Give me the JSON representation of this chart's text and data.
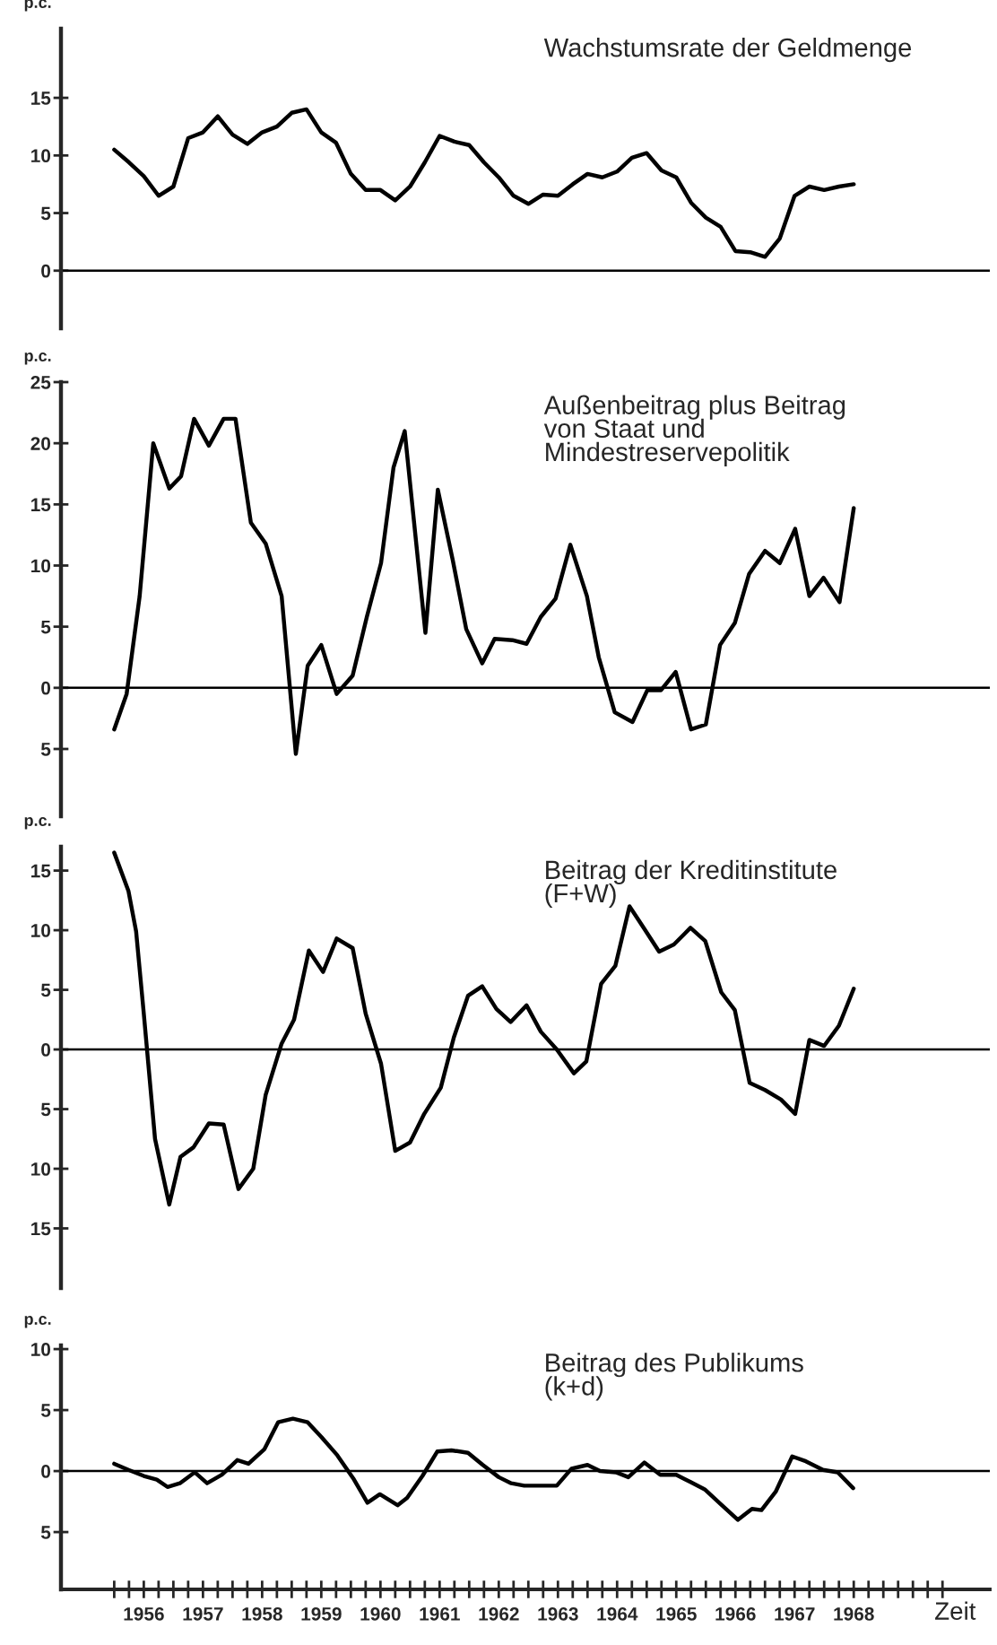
{
  "chart_data": [
    {
      "type": "line",
      "title": "Wachstumsrate der Geldmenge",
      "ylabel": "p.c.",
      "tick_labels": "y",
      "xlim": [
        1955.1,
        1970.8
      ],
      "ylim": [
        -5,
        21
      ],
      "yticks": [
        0,
        5,
        10,
        15
      ],
      "ref_lines": [
        {
          "axis": "y",
          "value": 0
        }
      ],
      "series": [
        {
          "color": "#000000",
          "x": [
            1956,
            1956.25,
            1956.5,
            1956.75,
            1957,
            1957.25,
            1957.5,
            1957.75,
            1958,
            1958.25,
            1958.5,
            1958.75,
            1959,
            1959.25,
            1959.5,
            1959.75,
            1960,
            1960.25,
            1960.5,
            1960.75,
            1961,
            1961.25,
            1961.5,
            1961.75,
            1962,
            1962.25,
            1962.5,
            1962.75,
            1963,
            1963.25,
            1963.5,
            1963.75,
            1964,
            1964.25,
            1964.5,
            1964.75,
            1965,
            1965.25,
            1965.5,
            1965.75,
            1966,
            1966.25,
            1966.5,
            1966.75,
            1967,
            1967.25,
            1967.5,
            1967.75,
            1968,
            1968.25,
            1968.5
          ],
          "values": [
            10.5,
            9.4,
            8.2,
            6.5,
            7.3,
            11.5,
            12,
            13.4,
            11.8,
            11,
            12,
            12.5,
            13.7,
            14,
            12,
            11.1,
            8.4,
            7,
            7,
            6.1,
            7.3,
            9.4,
            11.7,
            11.2,
            10.9,
            9.4,
            8.1,
            6.5,
            5.8,
            6.6,
            6.5,
            7.5,
            8.4,
            8.1,
            8.6,
            9.8,
            10.2,
            8.7,
            8.1,
            5.9,
            4.6,
            3.8,
            1.7,
            1.6,
            1.2,
            2.8,
            6.5,
            7.3,
            7,
            7.3,
            7.5
          ]
        }
      ]
    },
    {
      "type": "line",
      "title": "Außenbeitrag plus Beitrag\nvon Staat und\nMindestreservepolitik",
      "ylabel": "p.c.",
      "tick_labels": "y",
      "xlim": [
        1955.1,
        1970.8
      ],
      "ylim": [
        -10.5,
        25
      ],
      "yticks": [
        {
          "value": -5,
          "label": "5"
        },
        0,
        5,
        10,
        15,
        20,
        25
      ],
      "ref_lines": [
        {
          "axis": "y",
          "value": 0
        }
      ],
      "series": [
        {
          "color": "#000000",
          "x": [
            1956.0,
            1956.21,
            1956.43,
            1956.66,
            1956.93,
            1957.13,
            1957.35,
            1957.6,
            1957.85,
            1958.05,
            1958.31,
            1958.56,
            1958.83,
            1959.07,
            1959.27,
            1959.5,
            1959.76,
            1960.03,
            1960.27,
            1960.51,
            1960.72,
            1960.91,
            1961.26,
            1961.47,
            1961.72,
            1961.95,
            1962.22,
            1962.43,
            1962.73,
            1962.97,
            1963.21,
            1963.46,
            1963.71,
            1963.99,
            1964.19,
            1964.46,
            1964.76,
            1965.01,
            1965.24,
            1965.49,
            1965.75,
            1966.0,
            1966.24,
            1966.49,
            1966.73,
            1967.0,
            1967.25,
            1967.51,
            1967.75,
            1967.99,
            1968.26,
            1968.5
          ],
          "values": [
            -3.4,
            -0.5,
            7.5,
            20,
            16.3,
            17.3,
            22,
            19.8,
            22,
            22,
            13.5,
            11.8,
            7.5,
            -5.4,
            1.8,
            3.5,
            -0.5,
            1,
            5.8,
            10.2,
            18,
            21,
            4.5,
            16.2,
            10.5,
            4.8,
            2,
            4,
            3.9,
            3.6,
            5.8,
            7.3,
            11.7,
            7.5,
            2.5,
            -2,
            -2.8,
            -0.2,
            -0.2,
            1.3,
            -3.4,
            -3,
            3.5,
            5.3,
            9.3,
            11.2,
            10.2,
            13,
            7.5,
            9,
            7,
            14.7
          ]
        }
      ]
    },
    {
      "type": "line",
      "title": "Beitrag der Kreditinstitute\n(F+W)",
      "ylabel": "p.c.",
      "tick_labels": "y",
      "xlim": [
        1955.1,
        1970.8
      ],
      "ylim": [
        -20,
        17
      ],
      "yticks": [
        {
          "value": -15,
          "label": "15"
        },
        {
          "value": -10,
          "label": "10"
        },
        {
          "value": -5,
          "label": "5"
        },
        0,
        5,
        10,
        15
      ],
      "ref_lines": [
        {
          "axis": "y",
          "value": 0
        }
      ],
      "series": [
        {
          "color": "#000000",
          "x": [
            1956.0,
            1956.24,
            1956.37,
            1956.5,
            1956.69,
            1956.93,
            1957.12,
            1957.34,
            1957.6,
            1957.85,
            1958.1,
            1958.35,
            1958.56,
            1958.83,
            1959.04,
            1959.29,
            1959.53,
            1959.76,
            1960.03,
            1960.25,
            1960.51,
            1960.75,
            1961.0,
            1961.24,
            1961.52,
            1961.74,
            1961.98,
            1962.22,
            1962.46,
            1962.7,
            1962.97,
            1963.21,
            1963.48,
            1963.77,
            1963.98,
            1964.23,
            1964.47,
            1964.71,
            1964.95,
            1965.21,
            1965.46,
            1965.74,
            1965.99,
            1966.26,
            1966.49,
            1966.74,
            1967.0,
            1967.27,
            1967.51,
            1967.75,
            1968.0,
            1968.25,
            1968.5
          ],
          "values": [
            16.5,
            13.3,
            9.9,
            3,
            -7.5,
            -13,
            -9,
            -8.2,
            -6.2,
            -6.3,
            -11.7,
            -10,
            -3.8,
            0.5,
            2.5,
            8.3,
            6.5,
            9.3,
            8.5,
            3,
            -1.2,
            -8.5,
            -7.8,
            -5.4,
            -3.2,
            1,
            4.5,
            5.3,
            3.4,
            2.3,
            3.7,
            1.5,
            0,
            -2,
            -1,
            5.5,
            7,
            12,
            10.2,
            8.2,
            8.8,
            10.2,
            9.1,
            4.8,
            3.3,
            -2.8,
            -3.4,
            -4.2,
            -5.4,
            0.8,
            0.3,
            2,
            5.1
          ]
        }
      ]
    },
    {
      "type": "line",
      "title": "Beitrag des Publikums\n(k+d)",
      "ylabel": "p.c.",
      "xlabel": "Zeit",
      "xlim": [
        1955.1,
        1970.8
      ],
      "ylim": [
        -9.7,
        10.3
      ],
      "yticks": [
        {
          "value": -5,
          "label": "5"
        },
        0,
        5,
        10
      ],
      "ref_lines": [
        {
          "axis": "y",
          "value": 0
        }
      ],
      "xticks": [
        {
          "value": 1956,
          "label": null
        },
        {
          "value": 1956.25,
          "label": null
        },
        {
          "value": 1956.5,
          "label": "1956"
        },
        {
          "value": 1956.75,
          "label": null
        },
        {
          "value": 1957,
          "label": null
        },
        {
          "value": 1957.25,
          "label": null
        },
        {
          "value": 1957.5,
          "label": "1957"
        },
        {
          "value": 1957.75,
          "label": null
        },
        {
          "value": 1958,
          "label": null
        },
        {
          "value": 1958.25,
          "label": null
        },
        {
          "value": 1958.5,
          "label": "1958"
        },
        {
          "value": 1958.75,
          "label": null
        },
        {
          "value": 1959,
          "label": null
        },
        {
          "value": 1959.25,
          "label": null
        },
        {
          "value": 1959.5,
          "label": "1959"
        },
        {
          "value": 1959.75,
          "label": null
        },
        {
          "value": 1960,
          "label": null
        },
        {
          "value": 1960.25,
          "label": null
        },
        {
          "value": 1960.5,
          "label": "1960"
        },
        {
          "value": 1960.75,
          "label": null
        },
        {
          "value": 1961,
          "label": null
        },
        {
          "value": 1961.25,
          "label": null
        },
        {
          "value": 1961.5,
          "label": "1961"
        },
        {
          "value": 1961.75,
          "label": null
        },
        {
          "value": 1962,
          "label": null
        },
        {
          "value": 1962.25,
          "label": null
        },
        {
          "value": 1962.5,
          "label": "1962"
        },
        {
          "value": 1962.75,
          "label": null
        },
        {
          "value": 1963,
          "label": null
        },
        {
          "value": 1963.25,
          "label": null
        },
        {
          "value": 1963.5,
          "label": "1963"
        },
        {
          "value": 1963.75,
          "label": null
        },
        {
          "value": 1964,
          "label": null
        },
        {
          "value": 1964.25,
          "label": null
        },
        {
          "value": 1964.5,
          "label": "1964"
        },
        {
          "value": 1964.75,
          "label": null
        },
        {
          "value": 1965,
          "label": null
        },
        {
          "value": 1965.25,
          "label": null
        },
        {
          "value": 1965.5,
          "label": "1965"
        },
        {
          "value": 1965.75,
          "label": null
        },
        {
          "value": 1966,
          "label": null
        },
        {
          "value": 1966.25,
          "label": null
        },
        {
          "value": 1966.5,
          "label": "1966"
        },
        {
          "value": 1966.75,
          "label": null
        },
        {
          "value": 1967,
          "label": null
        },
        {
          "value": 1967.25,
          "label": null
        },
        {
          "value": 1967.5,
          "label": "1967"
        },
        {
          "value": 1967.75,
          "label": null
        },
        {
          "value": 1968,
          "label": null
        },
        {
          "value": 1968.25,
          "label": null
        },
        {
          "value": 1968.5,
          "label": "1968"
        },
        {
          "value": 1968.75,
          "label": null
        },
        {
          "value": 1969,
          "label": null
        },
        {
          "value": 1969.25,
          "label": null
        },
        {
          "value": 1969.5,
          "label": null
        },
        {
          "value": 1969.75,
          "label": null
        },
        {
          "value": 1970,
          "label": null
        }
      ],
      "series": [
        {
          "color": "#000000",
          "x": [
            1956.0,
            1956.24,
            1956.5,
            1956.72,
            1956.9,
            1957.11,
            1957.36,
            1957.57,
            1957.82,
            1958.08,
            1958.27,
            1958.54,
            1958.77,
            1959.02,
            1959.27,
            1959.5,
            1959.77,
            1960.04,
            1960.28,
            1960.49,
            1960.79,
            1960.95,
            1961.21,
            1961.46,
            1961.7,
            1961.98,
            1962.23,
            1962.5,
            1962.71,
            1962.93,
            1963.48,
            1963.73,
            1964.0,
            1964.21,
            1964.48,
            1964.69,
            1964.96,
            1965.23,
            1965.5,
            1965.74,
            1965.98,
            1966.25,
            1966.54,
            1966.78,
            1966.94,
            1967.18,
            1967.46,
            1967.69,
            1967.98,
            1968.23,
            1968.49
          ],
          "values": [
            0.6,
            0.1,
            -0.4,
            -0.7,
            -1.3,
            -1,
            -0.1,
            -1,
            -0.3,
            0.9,
            0.6,
            1.8,
            4,
            4.3,
            4,
            2.8,
            1.3,
            -0.6,
            -2.6,
            -1.9,
            -2.8,
            -2.2,
            -0.4,
            1.6,
            1.7,
            1.5,
            0.5,
            -0.5,
            -1,
            -1.2,
            -1.2,
            0.2,
            0.5,
            0,
            -0.1,
            -0.5,
            0.7,
            -0.3,
            -0.3,
            -0.9,
            -1.5,
            -2.7,
            -4,
            -3.1,
            -3.2,
            -1.7,
            1.2,
            0.8,
            0.1,
            -0.1,
            -1.4
          ]
        }
      ]
    }
  ]
}
